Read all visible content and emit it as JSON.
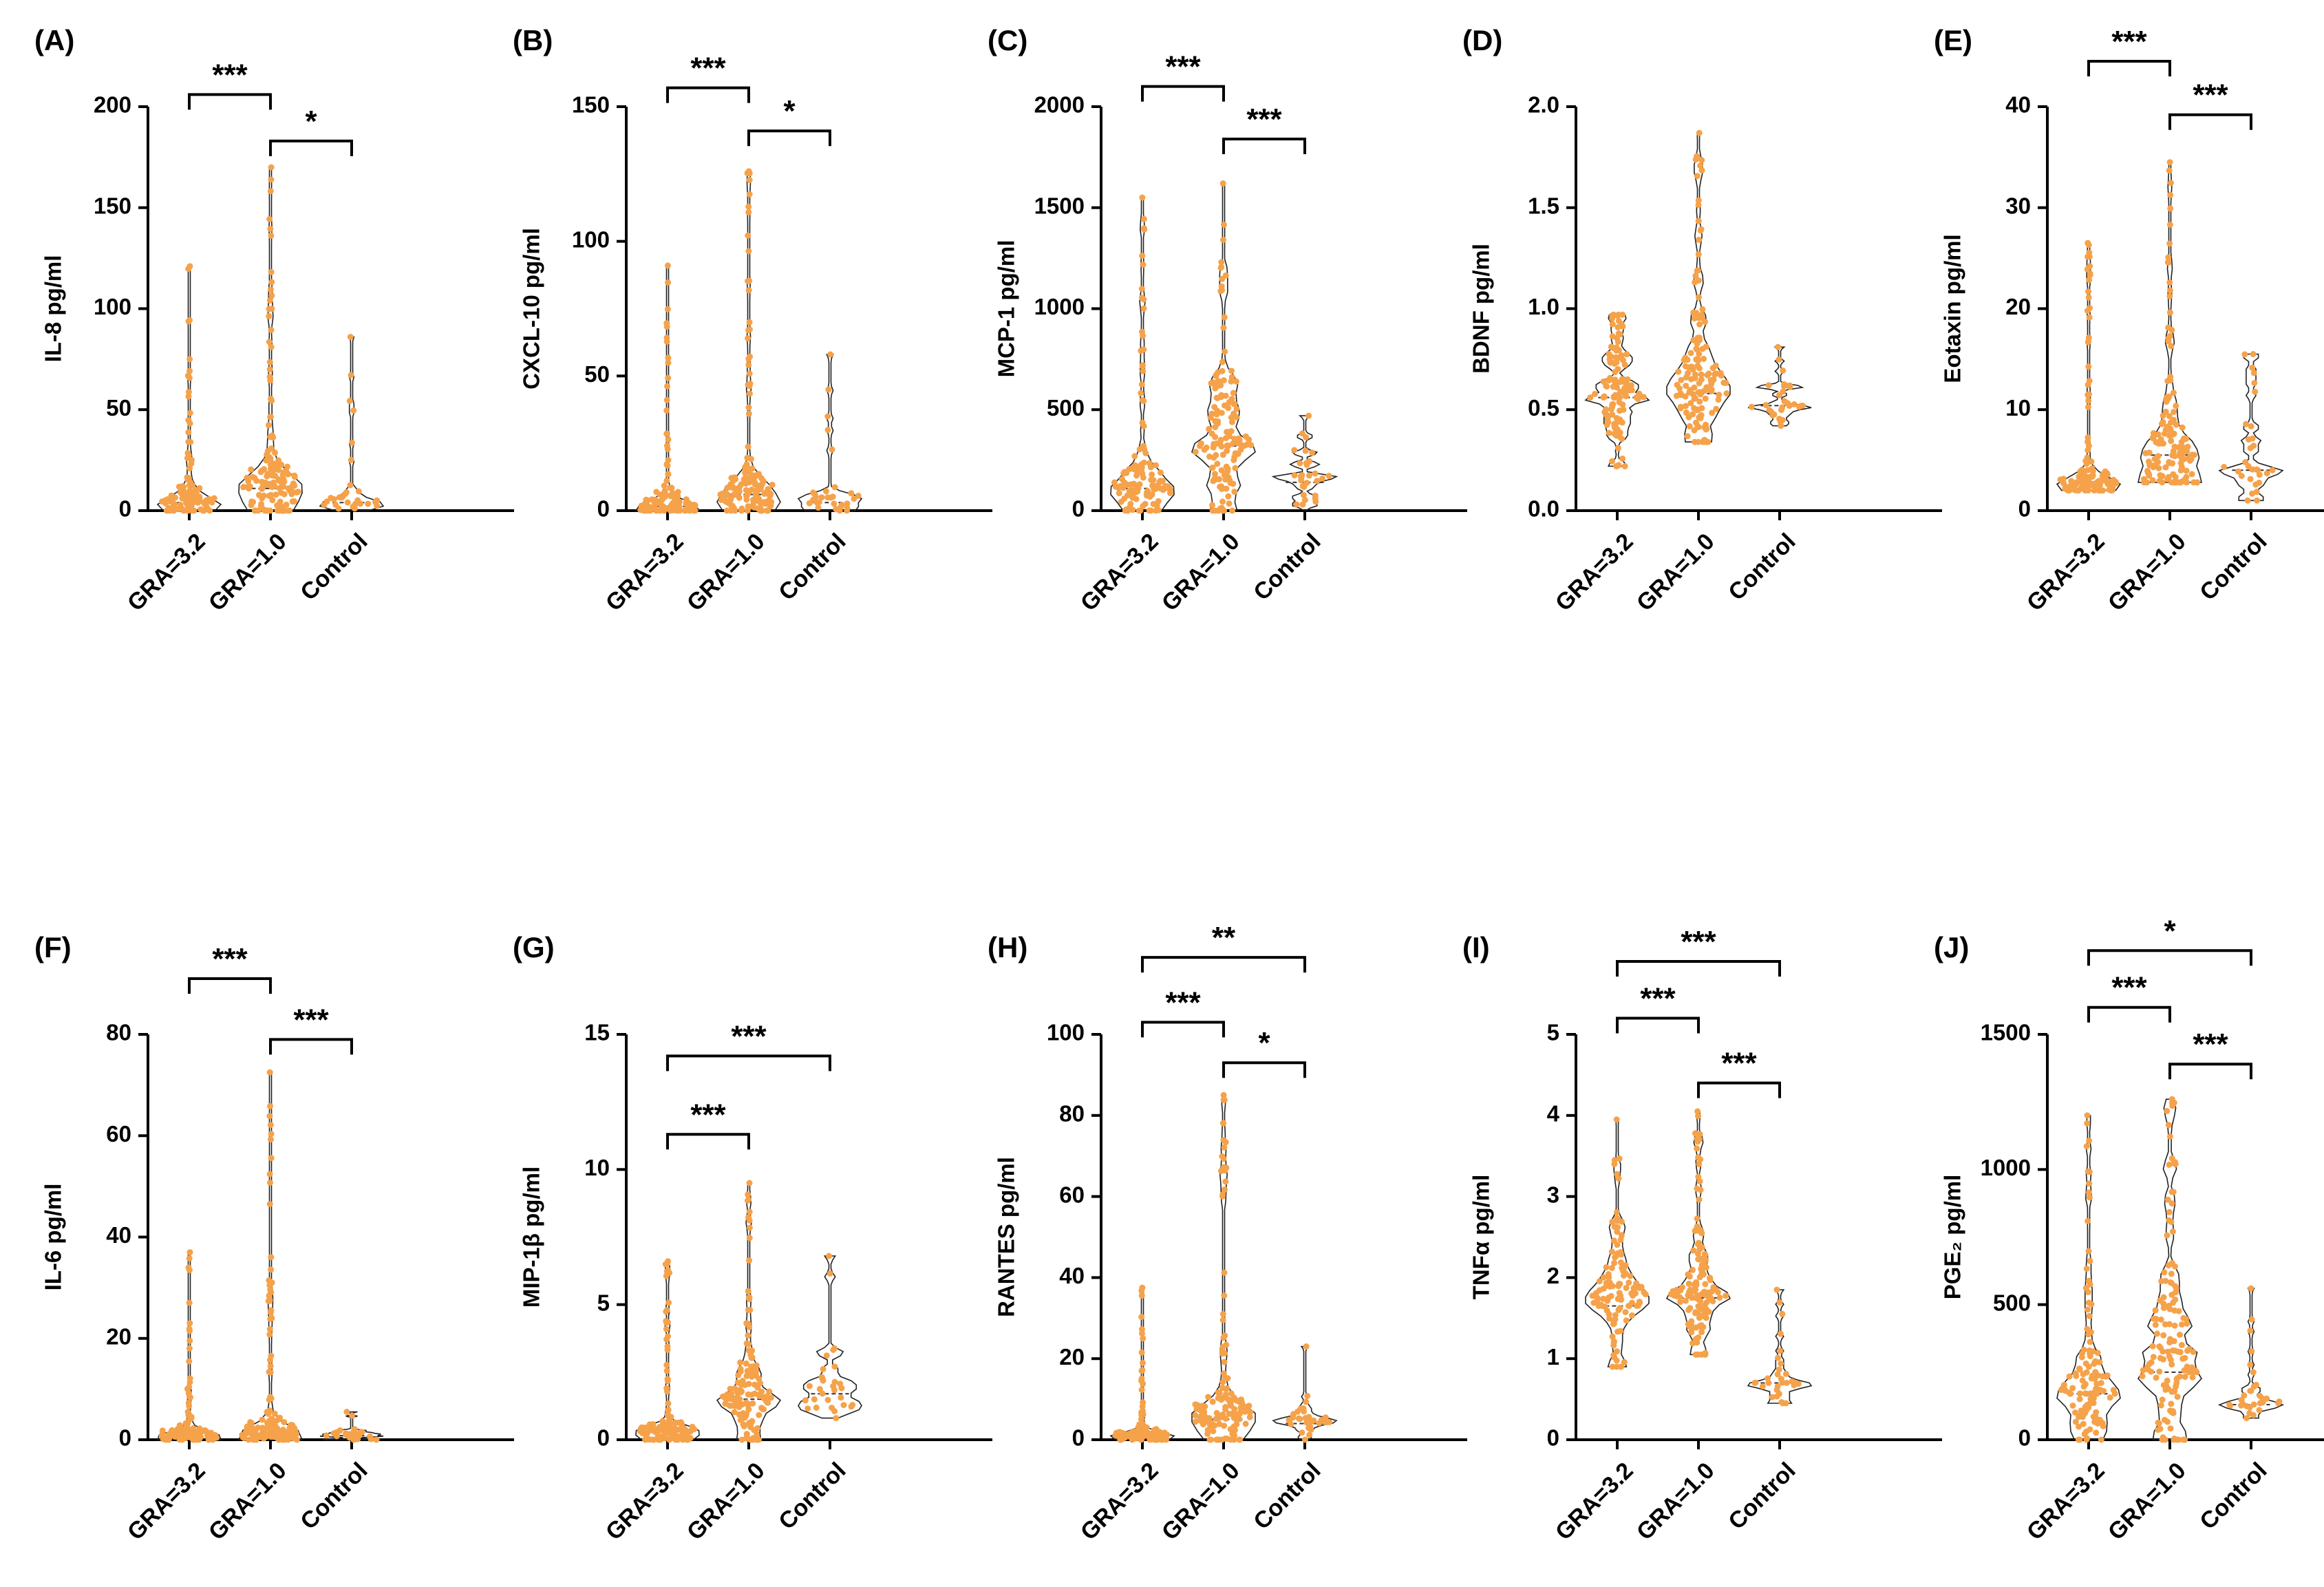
{
  "figure": {
    "background": "#ffffff",
    "point_color": "#f5a24a",
    "violin_stroke": "#222222",
    "axis_color": "#000000"
  },
  "chart_data": [
    {
      "type": "violin",
      "panel": "(A)",
      "ylabel": "IL-8 pg/ml",
      "ylim": [
        0,
        200
      ],
      "yticks": [
        "0",
        "50",
        "100",
        "150",
        "200"
      ],
      "categories": [
        "GRA=3.2",
        "GRA=1.0",
        "Control"
      ],
      "groups": [
        {
          "name": "GRA=3.2",
          "n": 120,
          "median": 4,
          "max": 121,
          "min": 0
        },
        {
          "name": "GRA=1.0",
          "n": 140,
          "median": 11,
          "max": 170,
          "min": 0
        },
        {
          "name": "Control",
          "n": 30,
          "median": 4,
          "max": 86,
          "min": 0
        }
      ],
      "significance": [
        {
          "from": 0,
          "to": 1,
          "label": "***",
          "y": 206
        },
        {
          "from": 1,
          "to": 2,
          "label": "*",
          "y": 183
        }
      ]
    },
    {
      "type": "violin",
      "panel": "(B)",
      "ylabel": "CXCL-10 pg/ml",
      "ylim": [
        0,
        150
      ],
      "yticks": [
        "0",
        "50",
        "100",
        "150"
      ],
      "categories": [
        "GRA=3.2",
        "GRA=1.0",
        "Control"
      ],
      "groups": [
        {
          "name": "GRA=3.2",
          "n": 120,
          "median": 1.5,
          "max": 91,
          "min": 0
        },
        {
          "name": "GRA=1.0",
          "n": 140,
          "median": 6,
          "max": 126,
          "min": 0
        },
        {
          "name": "Control",
          "n": 30,
          "median": 3,
          "max": 58,
          "min": 0
        }
      ],
      "significance": [
        {
          "from": 0,
          "to": 1,
          "label": "***",
          "y": 157
        },
        {
          "from": 1,
          "to": 2,
          "label": "*",
          "y": 141
        }
      ]
    },
    {
      "type": "violin",
      "panel": "(C)",
      "ylabel": "MCP-1 pg/ml",
      "ylim": [
        0,
        2000
      ],
      "yticks": [
        "0",
        "500",
        "1000",
        "1500",
        "2000"
      ],
      "categories": [
        "GRA=3.2",
        "GRA=1.0",
        "Control"
      ],
      "groups": [
        {
          "name": "GRA=3.2",
          "n": 120,
          "median": 110,
          "max": 1550,
          "min": 0
        },
        {
          "name": "GRA=1.0",
          "n": 140,
          "median": 320,
          "max": 1620,
          "min": 0
        },
        {
          "name": "Control",
          "n": 30,
          "median": 140,
          "max": 470,
          "min": 0
        }
      ],
      "significance": [
        {
          "from": 0,
          "to": 1,
          "label": "***",
          "y": 2100
        },
        {
          "from": 1,
          "to": 2,
          "label": "***",
          "y": 1840
        }
      ]
    },
    {
      "type": "violin",
      "panel": "(D)",
      "ylabel": "BDNF pg/ml",
      "ylim": [
        0,
        2.0
      ],
      "yticks": [
        "0.0",
        "0.5",
        "1.0",
        "1.5",
        "2.0"
      ],
      "categories": [
        "GRA=3.2",
        "GRA=1.0",
        "Control"
      ],
      "groups": [
        {
          "name": "GRA=3.2",
          "n": 120,
          "median": 0.56,
          "max": 0.97,
          "min": 0.22
        },
        {
          "name": "GRA=1.0",
          "n": 140,
          "median": 0.58,
          "max": 1.87,
          "min": 0.34
        },
        {
          "name": "Control",
          "n": 30,
          "median": 0.52,
          "max": 0.81,
          "min": 0.42
        }
      ],
      "significance": []
    },
    {
      "type": "violin",
      "panel": "(E)",
      "ylabel": "Eotaxin pg/ml",
      "ylim": [
        0,
        40
      ],
      "yticks": [
        "0",
        "10",
        "20",
        "30",
        "40"
      ],
      "categories": [
        "GRA=3.2",
        "GRA=1.0",
        "Control"
      ],
      "groups": [
        {
          "name": "GRA=3.2",
          "n": 120,
          "median": 2.8,
          "max": 26.5,
          "min": 2.0
        },
        {
          "name": "GRA=1.0",
          "n": 140,
          "median": 5.5,
          "max": 34.5,
          "min": 2.8
        },
        {
          "name": "Control",
          "n": 30,
          "median": 4,
          "max": 15.5,
          "min": 1.0
        }
      ],
      "significance": [
        {
          "from": 0,
          "to": 1,
          "label": "***",
          "y": 44.5
        },
        {
          "from": 1,
          "to": 2,
          "label": "***",
          "y": 39.2
        }
      ]
    },
    {
      "type": "violin",
      "panel": "(F)",
      "ylabel": "IL-6 pg/ml",
      "ylim": [
        0,
        80
      ],
      "yticks": [
        "0",
        "20",
        "40",
        "60",
        "80"
      ],
      "categories": [
        "GRA=3.2",
        "GRA=1.0",
        "Control"
      ],
      "groups": [
        {
          "name": "GRA=3.2",
          "n": 120,
          "median": 0.8,
          "max": 37,
          "min": 0
        },
        {
          "name": "GRA=1.0",
          "n": 140,
          "median": 1.2,
          "max": 72.5,
          "min": 0
        },
        {
          "name": "Control",
          "n": 30,
          "median": 0.8,
          "max": 5.5,
          "min": 0
        }
      ],
      "significance": [
        {
          "from": 0,
          "to": 1,
          "label": "***",
          "y": 91
        },
        {
          "from": 1,
          "to": 2,
          "label": "***",
          "y": 79
        }
      ]
    },
    {
      "type": "violin",
      "panel": "(G)",
      "ylabel": "MIP-1β pg/ml",
      "ylim": [
        0,
        15
      ],
      "yticks": [
        "0",
        "5",
        "10",
        "15"
      ],
      "categories": [
        "GRA=3.2",
        "GRA=1.0",
        "Control"
      ],
      "groups": [
        {
          "name": "GRA=3.2",
          "n": 120,
          "median": 0.3,
          "max": 6.6,
          "min": 0
        },
        {
          "name": "GRA=1.0",
          "n": 140,
          "median": 1.5,
          "max": 9.5,
          "min": 0
        },
        {
          "name": "Control",
          "n": 30,
          "median": 1.7,
          "max": 6.8,
          "min": 0.8
        }
      ],
      "significance": [
        {
          "from": 0,
          "to": 1,
          "label": "***",
          "y": 11.3
        },
        {
          "from": 0,
          "to": 2,
          "label": "***",
          "y": 14.2
        }
      ]
    },
    {
      "type": "violin",
      "panel": "(H)",
      "ylabel": "RANTES pg/ml",
      "ylim": [
        0,
        100
      ],
      "yticks": [
        "0",
        "20",
        "40",
        "60",
        "80",
        "100"
      ],
      "categories": [
        "GRA=3.2",
        "GRA=1.0",
        "Control"
      ],
      "groups": [
        {
          "name": "GRA=3.2",
          "n": 120,
          "median": 1,
          "max": 37.5,
          "min": 0
        },
        {
          "name": "GRA=1.0",
          "n": 140,
          "median": 5,
          "max": 85,
          "min": 0
        },
        {
          "name": "Control",
          "n": 30,
          "median": 4,
          "max": 23,
          "min": 0
        }
      ],
      "significance": [
        {
          "from": 0,
          "to": 1,
          "label": "***",
          "y": 103
        },
        {
          "from": 1,
          "to": 2,
          "label": "*",
          "y": 93
        },
        {
          "from": 0,
          "to": 2,
          "label": "**",
          "y": 119
        }
      ]
    },
    {
      "type": "violin",
      "panel": "(I)",
      "ylabel": "TNFα pg/ml",
      "ylim": [
        0,
        5
      ],
      "yticks": [
        "0",
        "1",
        "2",
        "3",
        "4",
        "5"
      ],
      "categories": [
        "GRA=3.2",
        "GRA=1.0",
        "Control"
      ],
      "groups": [
        {
          "name": "GRA=3.2",
          "n": 120,
          "median": 1.65,
          "max": 3.95,
          "min": 0.9
        },
        {
          "name": "GRA=1.0",
          "n": 140,
          "median": 1.75,
          "max": 4.05,
          "min": 1.05
        },
        {
          "name": "Control",
          "n": 30,
          "median": 0.7,
          "max": 1.85,
          "min": 0.45
        }
      ],
      "significance": [
        {
          "from": 0,
          "to": 1,
          "label": "***",
          "y": 5.2
        },
        {
          "from": 1,
          "to": 2,
          "label": "***",
          "y": 4.4
        },
        {
          "from": 0,
          "to": 2,
          "label": "***",
          "y": 5.9
        }
      ]
    },
    {
      "type": "violin",
      "panel": "(J)",
      "ylabel": "PGE₂ pg/ml",
      "ylim": [
        0,
        1500
      ],
      "yticks": [
        "0",
        "500",
        "1000",
        "1500"
      ],
      "categories": [
        "GRA=3.2",
        "GRA=1.0",
        "Control"
      ],
      "groups": [
        {
          "name": "GRA=3.2",
          "n": 120,
          "median": 170,
          "max": 1200,
          "min": 0
        },
        {
          "name": "GRA=1.0",
          "n": 140,
          "median": 250,
          "max": 1260,
          "min": 0
        },
        {
          "name": "Control",
          "n": 30,
          "median": 130,
          "max": 560,
          "min": 80
        }
      ],
      "significance": [
        {
          "from": 0,
          "to": 1,
          "label": "***",
          "y": 1600
        },
        {
          "from": 1,
          "to": 2,
          "label": "***",
          "y": 1390
        },
        {
          "from": 0,
          "to": 2,
          "label": "*",
          "y": 1810
        }
      ]
    }
  ]
}
